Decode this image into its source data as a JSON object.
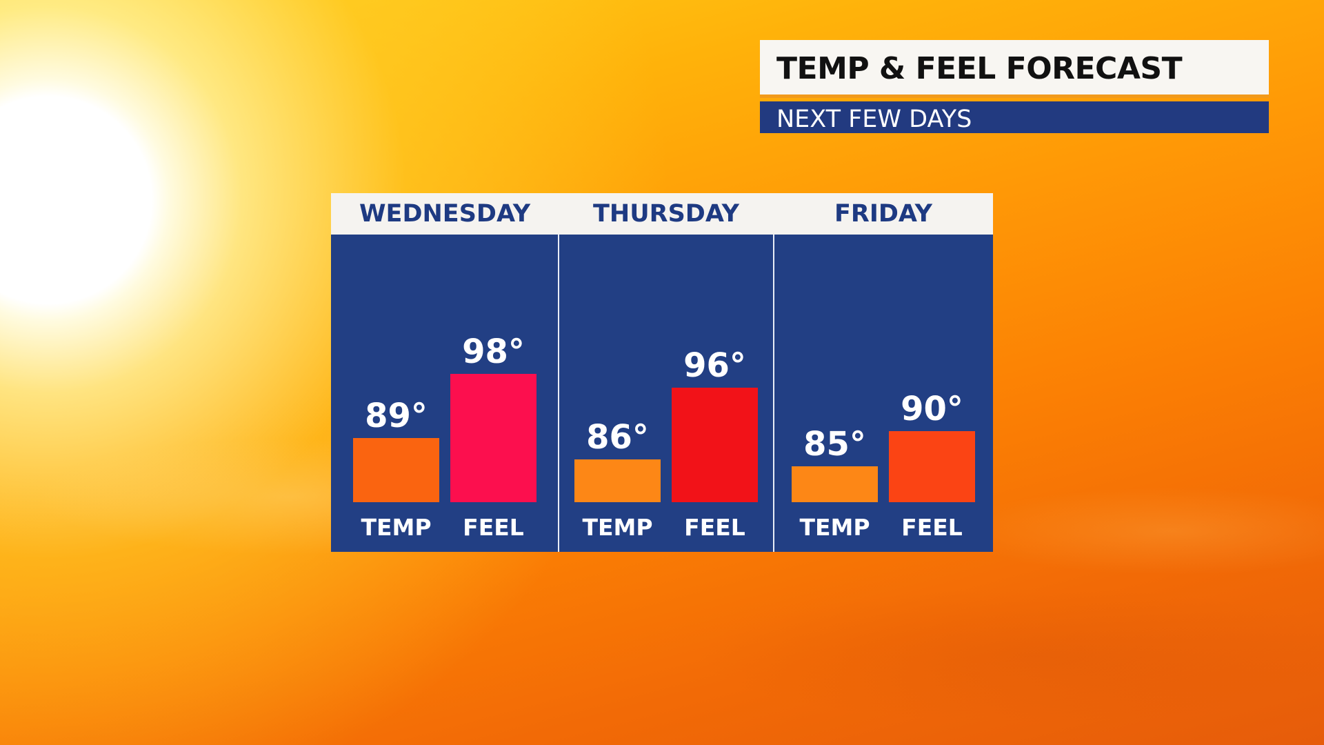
{
  "header": {
    "title": "TEMP & FEEL FORECAST",
    "subtitle": "NEXT FEW DAYS"
  },
  "chart_data": {
    "type": "bar",
    "title": "TEMP & FEEL FORECAST",
    "subtitle": "NEXT FEW DAYS",
    "xlabel": "",
    "ylabel": "",
    "unit": "°",
    "grid": false,
    "groups": [
      {
        "day": "WEDNESDAY",
        "bars": [
          {
            "label": "TEMP",
            "value": 89,
            "color": "#fa6410"
          },
          {
            "label": "FEEL",
            "value": 98,
            "color": "#fc0f4e"
          }
        ]
      },
      {
        "day": "THURSDAY",
        "bars": [
          {
            "label": "TEMP",
            "value": 86,
            "color": "#fd8716"
          },
          {
            "label": "FEEL",
            "value": 96,
            "color": "#f21218"
          }
        ]
      },
      {
        "day": "FRIDAY",
        "bars": [
          {
            "label": "TEMP",
            "value": 85,
            "color": "#fd8716"
          },
          {
            "label": "FEEL",
            "value": 90,
            "color": "#fb4414"
          }
        ]
      }
    ]
  },
  "colors": {
    "panel_bg": "#223f84",
    "header_bg": "#f5f3f0",
    "day_text": "#1e3a82",
    "subtitle_bg": "#223a80",
    "title_accent": "#f19a1c"
  }
}
